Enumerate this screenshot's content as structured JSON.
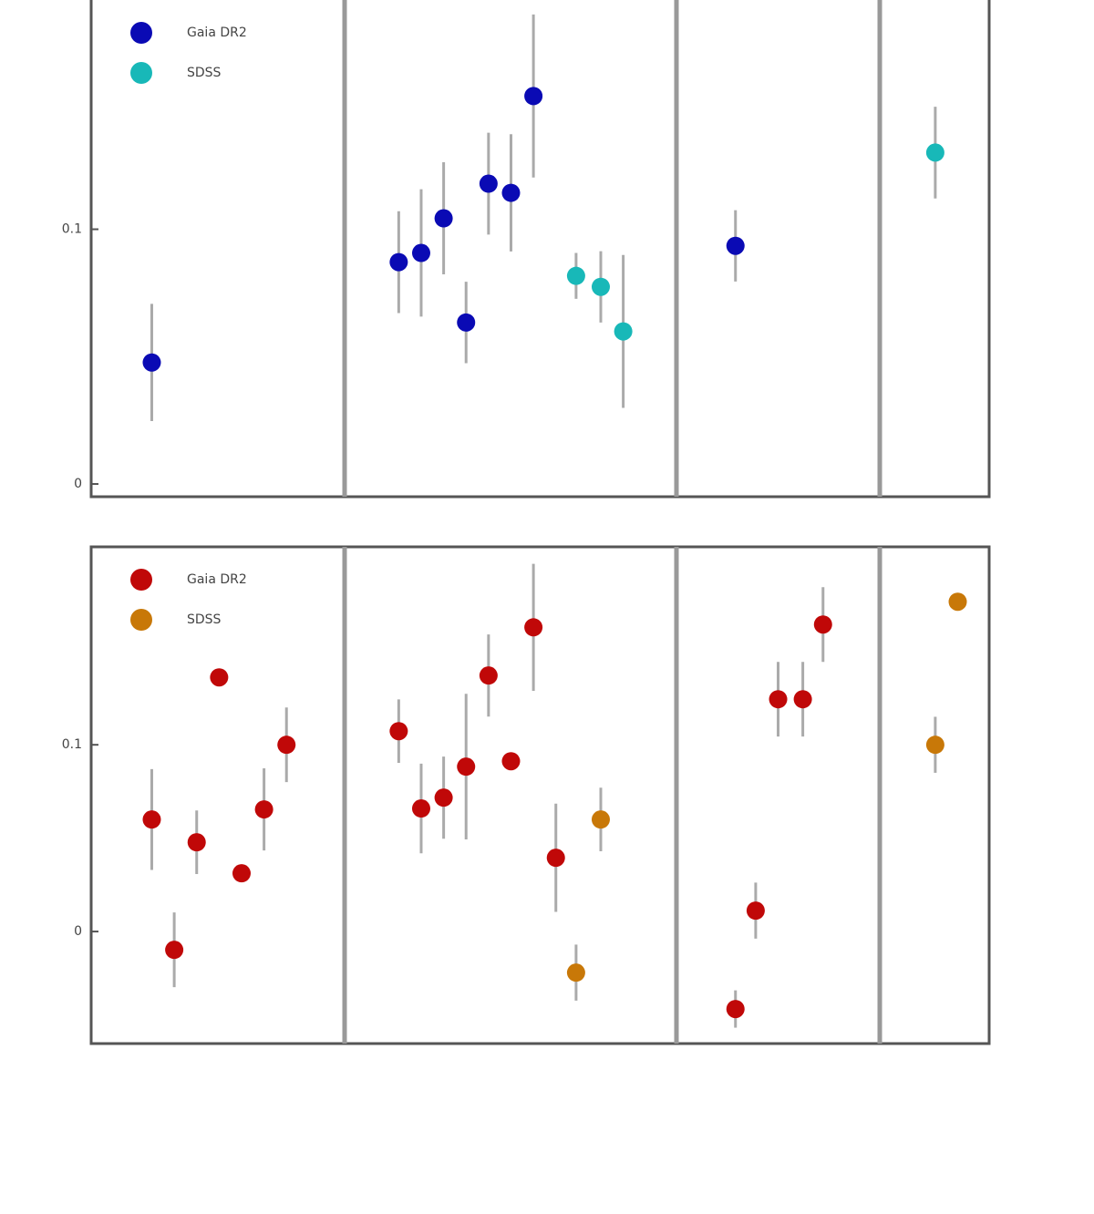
{
  "chart_data": [
    {
      "type": "scatter",
      "xlim": [
        0,
        40
      ],
      "ylim": [
        -0.005,
        0.19
      ],
      "yticks": [
        0.0,
        0.1
      ],
      "series": [
        {
          "name": "Gaia DR2",
          "color": "#0a0ab4",
          "x": [
            2.7,
            13.7,
            14.7,
            15.7,
            16.7,
            17.7,
            18.7,
            19.7,
            28.7
          ],
          "values": [
            0.0477,
            0.0871,
            0.0907,
            0.1043,
            0.0634,
            0.1179,
            0.1143,
            0.1523,
            0.0935
          ],
          "errors": [
            0.023,
            0.02,
            0.025,
            0.022,
            0.016,
            0.02,
            0.023,
            0.032,
            0.014
          ]
        },
        {
          "name": "SDSS",
          "color": "#18b8b8",
          "x": [
            21.6,
            22.7,
            23.7,
            37.6
          ],
          "values": [
            0.0817,
            0.0774,
            0.0599,
            0.1301
          ],
          "errors": [
            0.009,
            0.014,
            0.03,
            0.018
          ]
        }
      ]
    },
    {
      "type": "scatter",
      "xlim": [
        0,
        40
      ],
      "ylim": [
        -0.06,
        0.206
      ],
      "yticks": [
        0.0,
        0.1
      ],
      "series": [
        {
          "name": "Gaia DR2",
          "color": "#c00808",
          "x": [
            2.7,
            3.7,
            4.7,
            5.7,
            6.7,
            7.7,
            8.7,
            13.7,
            14.7,
            15.7,
            16.7,
            17.7,
            18.7,
            19.7,
            20.7,
            28.7,
            29.6,
            30.6,
            31.7,
            32.6
          ],
          "values": [
            0.06,
            -0.0098,
            0.0478,
            0.1361,
            0.0312,
            0.0654,
            0.1,
            0.1073,
            0.0659,
            0.0717,
            0.0883,
            0.1371,
            0.0912,
            0.1629,
            0.0395,
            -0.0415,
            0.0112,
            0.1244,
            0.1244,
            0.1644
          ],
          "errors": [
            0.027,
            0.02,
            0.017,
            0,
            0,
            0.022,
            0.02,
            0.017,
            0.024,
            0.022,
            0.039,
            0.022,
            0,
            0.034,
            0.029,
            0.01,
            0.015,
            0.02,
            0.02,
            0.02
          ]
        },
        {
          "name": "SDSS",
          "color": "#c87808",
          "x": [
            21.6,
            22.7,
            37.6,
            38.6
          ],
          "values": [
            -0.022,
            0.06,
            0.1,
            0.1766
          ],
          "errors": [
            0.015,
            0.017,
            0.015,
            0
          ]
        }
      ]
    }
  ]
}
